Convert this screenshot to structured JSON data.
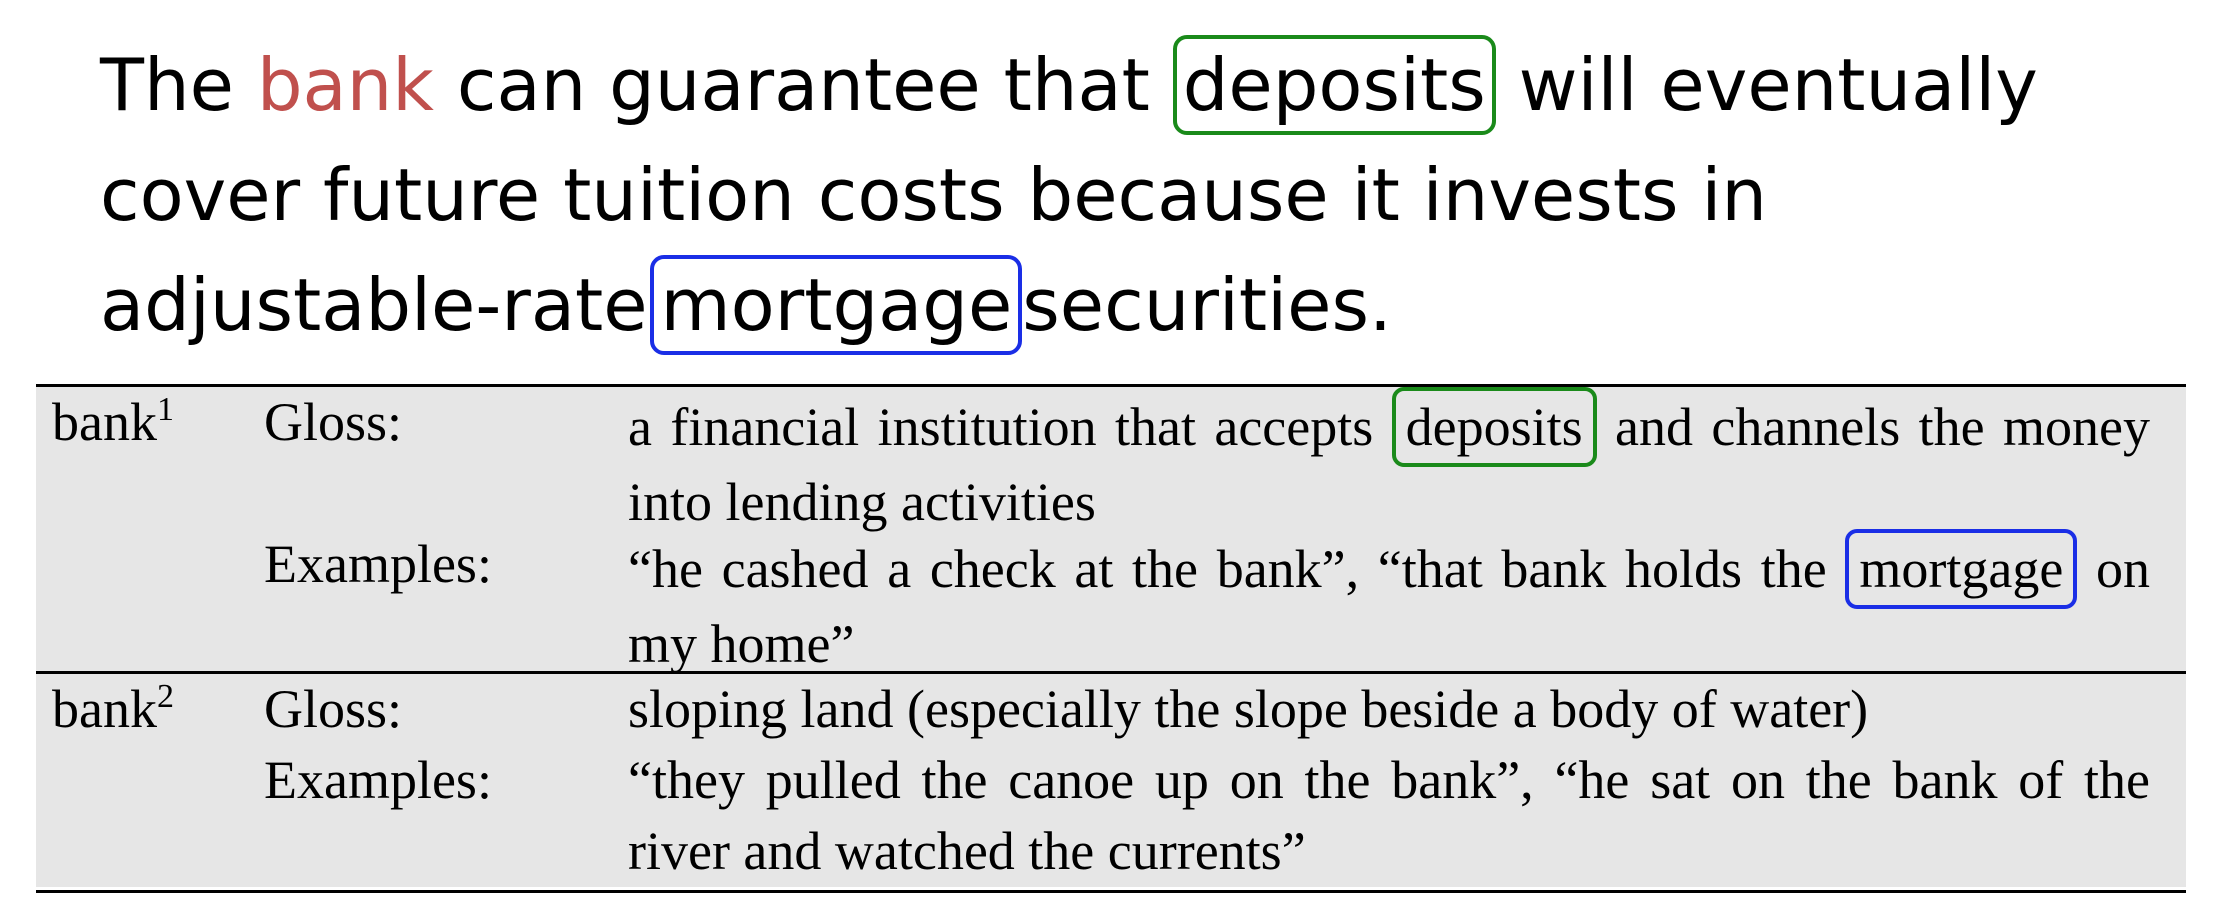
{
  "sentence": {
    "word_1": "The",
    "target": "bank",
    "part_a": "can guarantee that",
    "highlight_green": "deposits",
    "part_b": "will eventually cover future tuition costs because it invests in adjustable-rate",
    "highlight_blue": "mortgage",
    "part_c": "securities."
  },
  "senses": [
    {
      "word": "bank",
      "sense_number": "1",
      "gloss_label": "Gloss:",
      "gloss_before": "a financial institution that accepts",
      "gloss_highlight": "deposits",
      "gloss_after": "and channels the money into lending activities",
      "examples_label": "Examples:",
      "examples_before": "“he cashed a check at the bank”, “that bank holds the",
      "examples_highlight": "mortgage",
      "examples_after": "on my home”"
    },
    {
      "word": "bank",
      "sense_number": "2",
      "gloss_label": "Gloss:",
      "gloss": "sloping land (especially the slope beside a body of water)",
      "examples_label": "Examples:",
      "examples": "“they pulled the canoe up on the bank”, “he sat on the bank of the river and watched the currents”"
    }
  ],
  "colors": {
    "target_word": "#c0504d",
    "green_highlight": "#1a8a1a",
    "blue_highlight": "#1a2ee6",
    "table_background": "#e6e6e6"
  }
}
